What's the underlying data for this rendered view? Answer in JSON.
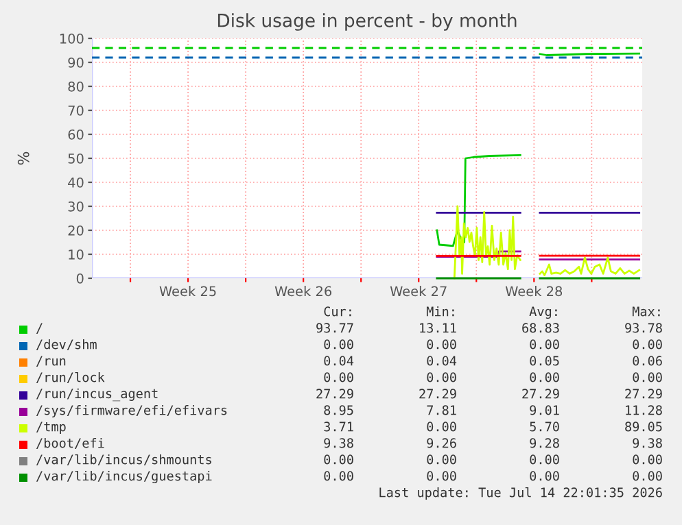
{
  "chart_data": {
    "type": "line",
    "title": "Disk usage in percent - by month",
    "ylabel": "%",
    "xlim": [
      "2026-06-11T16:00",
      "2026-07-15T01:36"
    ],
    "ylim": [
      0,
      100
    ],
    "xticks": [
      {
        "value": "2026-06-14T00:00",
        "label": null
      },
      {
        "value": "2026-06-17T12:00",
        "label": "Week 25"
      },
      {
        "value": "2026-06-21T00:00",
        "label": null
      },
      {
        "value": "2026-06-24T12:00",
        "label": "Week 26"
      },
      {
        "value": "2026-06-28T00:00",
        "label": null
      },
      {
        "value": "2026-07-01T12:00",
        "label": "Week 27"
      },
      {
        "value": "2026-07-05T00:00",
        "label": null
      },
      {
        "value": "2026-07-08T12:00",
        "label": "Week 28"
      },
      {
        "value": "2026-07-12T00:00",
        "label": null
      }
    ],
    "yticks": [
      0,
      10,
      20,
      30,
      40,
      50,
      60,
      70,
      80,
      90,
      100
    ],
    "grid": true,
    "legend": "bottom",
    "marker": "none",
    "line_style": "solid",
    "ref_lines": [
      {
        "axis": "y",
        "value": 96,
        "color": "#00cc00",
        "line_style": "dashed"
      },
      {
        "axis": "y",
        "value": 92,
        "color": "#0066b3",
        "line_style": "dashed"
      }
    ],
    "series": [
      {
        "name": "/",
        "color": "#00cc00",
        "x": [
          "2026-07-02T14:34",
          "2026-07-02T17:55",
          "2026-07-03T14:05",
          "2026-07-03T20:34",
          "2026-07-04T03:17",
          "2026-07-04T06:24",
          "2026-07-04T08:05",
          "2026-07-04T20:05",
          "2026-07-05T19:22",
          "2026-07-07T16:00",
          "2026-07-08T04:00",
          "2026-07-08T20:34",
          "2026-07-09T06:24",
          "2026-07-11T15:17",
          "2026-07-14T21:17"
        ],
        "values": [
          20,
          14,
          13.5,
          20,
          15,
          15,
          50,
          50.5,
          51,
          51.3,
          null,
          93.5,
          93,
          93.5,
          93.7
        ]
      },
      {
        "name": "/dev/shm",
        "color": "#0066b3"
      },
      {
        "name": "/run",
        "color": "#ff8000"
      },
      {
        "name": "/run/lock",
        "color": "#ffcc00"
      },
      {
        "name": "/run/incus_agent",
        "color": "#330099",
        "x": [
          "2026-07-02T14:34",
          "2026-07-07T16:00",
          "2026-07-08T04:00",
          "2026-07-08T20:34",
          "2026-07-14T21:17"
        ],
        "values": [
          27.3,
          27.3,
          null,
          27.3,
          27.3
        ]
      },
      {
        "name": "/sys/firmware/efi/efivars",
        "color": "#990099",
        "x": [
          "2026-07-02T14:34",
          "2026-07-06T08:34",
          "2026-07-06T08:48",
          "2026-07-07T16:00",
          "2026-07-08T04:00",
          "2026-07-08T20:34",
          "2026-07-14T21:17"
        ],
        "values": [
          9.0,
          9.0,
          11.2,
          11.2,
          null,
          7.8,
          7.8
        ]
      },
      {
        "name": "/tmp",
        "color": "#ccff00",
        "x": [
          "2026-07-03T16:00",
          "2026-07-03T18:38",
          "2026-07-03T20:34",
          "2026-07-03T23:26",
          "2026-07-04T02:05",
          "2026-07-04T03:17",
          "2026-07-04T05:55",
          "2026-07-04T08:34",
          "2026-07-04T11:26",
          "2026-07-04T14:05",
          "2026-07-04T16:43",
          "2026-07-04T19:22",
          "2026-07-04T22:00",
          "2026-07-05T00:38",
          "2026-07-05T03:17",
          "2026-07-05T05:55",
          "2026-07-05T08:34",
          "2026-07-05T11:26",
          "2026-07-05T14:05",
          "2026-07-05T16:43",
          "2026-07-05T19:22",
          "2026-07-05T22:43",
          "2026-07-06T02:05",
          "2026-07-06T05:26",
          "2026-07-06T08:34",
          "2026-07-06T11:55",
          "2026-07-06T15:17",
          "2026-07-06T18:38",
          "2026-07-06T22:00",
          "2026-07-07T00:38",
          "2026-07-07T03:17",
          "2026-07-07T05:26",
          "2026-07-07T08:05",
          "2026-07-07T11:26",
          "2026-07-07T16:00",
          "2026-07-08T04:00",
          "2026-07-08T20:34",
          "2026-07-08T23:55",
          "2026-07-09T03:17",
          "2026-07-09T10:00",
          "2026-07-09T13:22",
          "2026-07-09T20:05",
          "2026-07-10T02:34",
          "2026-07-10T09:17",
          "2026-07-10T16:00",
          "2026-07-10T22:43",
          "2026-07-11T05:26",
          "2026-07-11T08:34",
          "2026-07-11T14:05",
          "2026-07-11T18:38",
          "2026-07-11T23:26",
          "2026-07-12T04:43",
          "2026-07-12T11:26",
          "2026-07-12T16:43",
          "2026-07-12T23:26",
          "2026-07-13T04:00",
          "2026-07-13T10:43",
          "2026-07-13T17:26",
          "2026-07-13T23:55",
          "2026-07-14T06:38",
          "2026-07-14T13:22",
          "2026-07-14T21:17"
        ],
        "values": [
          0,
          17.1,
          30,
          9.5,
          17.1,
          1.9,
          22.9,
          17.1,
          21.0,
          15.2,
          19.0,
          13.3,
          9.5,
          21.0,
          7.6,
          17.1,
          6.7,
          27.6,
          9.5,
          13.3,
          5.7,
          21.9,
          7.6,
          12.4,
          5.7,
          19.0,
          5.7,
          10.5,
          3.8,
          20.0,
          7.6,
          25.7,
          3.8,
          9.5,
          7.6,
          null,
          1.9,
          2.9,
          1.3,
          5.7,
          1.9,
          2.3,
          1.9,
          3.4,
          1.9,
          2.9,
          4.8,
          1.9,
          8.6,
          3.8,
          1.9,
          4.8,
          5.7,
          1.9,
          8.6,
          2.9,
          1.9,
          4.2,
          1.9,
          3.2,
          1.9,
          3.4
        ]
      },
      {
        "name": "/boot/efi",
        "color": "#ff0000",
        "x": [
          "2026-07-02T14:34",
          "2026-07-07T16:00",
          "2026-07-08T04:00",
          "2026-07-08T20:34",
          "2026-07-14T21:17"
        ],
        "values": [
          9.3,
          9.3,
          null,
          9.4,
          9.4
        ]
      },
      {
        "name": "/var/lib/incus/shmounts",
        "color": "#808080"
      },
      {
        "name": "/var/lib/incus/guestapi",
        "color": "#008f00",
        "x": [
          "2026-07-02T14:34",
          "2026-07-07T16:00",
          "2026-07-08T04:00",
          "2026-07-08T20:34",
          "2026-07-14T21:17"
        ],
        "values": [
          0,
          0,
          null,
          0,
          0
        ]
      }
    ],
    "annotations": [
      "Cur: Min: Avg: Max:",
      "93.77 13.11 68.83 93.78",
      "0.00 0.00 0.00 0.00",
      "0.04 0.04 0.05 0.06",
      "0.00 0.00 0.00 0.00",
      "27.29 27.29 27.29 27.29",
      "8.95 7.81 9.01 11.28",
      "3.71 0.00 5.70 89.05",
      "9.38 9.26 9.28 9.38",
      "0.00 0.00 0.00 0.00",
      "0.00 0.00 0.00 0.00",
      "Last update: Tue Jul 14 22:01:35 2026"
    ]
  }
}
